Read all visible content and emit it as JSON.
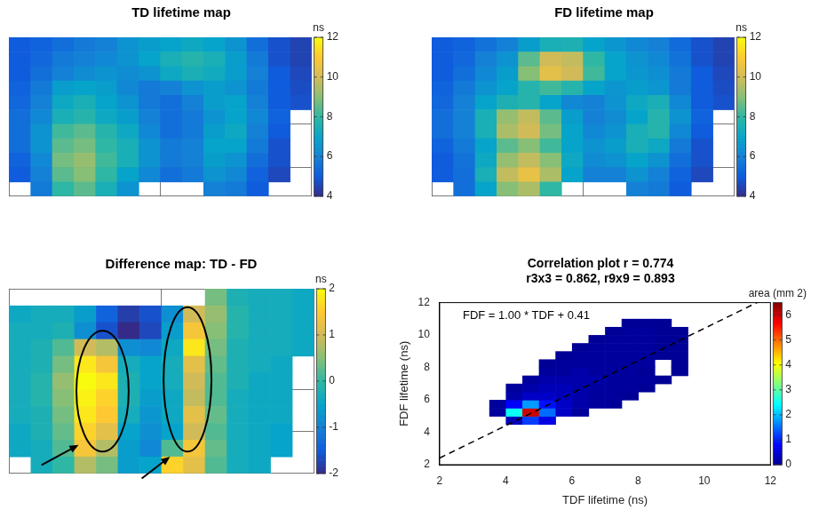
{
  "chart_data": [
    {
      "type": "heatmap",
      "title": "TD lifetime map",
      "xlim": [
        0,
        14
      ],
      "ylim": [
        0,
        11
      ],
      "xticks": [
        0,
        7,
        14
      ],
      "yticks": [
        0,
        3,
        6,
        9,
        11
      ],
      "grid": true,
      "tick_labels": false,
      "colorbar": {
        "label": "ns",
        "range": [
          4,
          12
        ],
        "ticks": [
          4,
          6,
          8,
          10,
          12
        ]
      },
      "cells": [
        [
          5.0,
          5.2,
          5.5,
          5.8,
          6.0,
          6.5,
          6.8,
          7.0,
          7.2,
          7.0,
          6.5,
          5.5,
          4.8,
          4.5
        ],
        [
          5.0,
          5.3,
          5.8,
          6.0,
          6.2,
          6.5,
          7.0,
          7.5,
          7.8,
          7.5,
          6.8,
          5.8,
          4.8,
          4.5
        ],
        [
          5.0,
          5.5,
          6.0,
          6.3,
          6.5,
          6.3,
          6.5,
          7.2,
          7.5,
          7.3,
          6.8,
          6.0,
          5.0,
          4.6
        ],
        [
          5.2,
          5.8,
          6.8,
          7.0,
          6.8,
          6.2,
          5.8,
          6.0,
          6.5,
          6.8,
          6.5,
          5.8,
          5.0,
          4.7
        ],
        [
          5.3,
          6.0,
          7.2,
          7.5,
          7.0,
          6.5,
          5.8,
          5.5,
          6.0,
          6.8,
          7.0,
          6.0,
          5.0,
          4.8
        ],
        [
          5.5,
          6.2,
          7.5,
          7.8,
          7.2,
          6.8,
          6.0,
          5.5,
          5.8,
          6.5,
          7.0,
          6.2,
          5.2,
          null
        ],
        [
          5.5,
          6.5,
          8.2,
          8.5,
          7.8,
          7.2,
          6.2,
          5.5,
          5.8,
          6.8,
          7.2,
          6.0,
          5.0,
          null
        ],
        [
          5.5,
          6.5,
          8.5,
          8.8,
          8.0,
          7.5,
          6.5,
          5.8,
          6.0,
          7.0,
          7.0,
          5.8,
          4.8,
          null
        ],
        [
          5.2,
          6.2,
          8.8,
          9.2,
          8.2,
          7.5,
          6.5,
          5.8,
          6.0,
          6.8,
          6.5,
          5.5,
          4.8,
          null
        ],
        [
          5.0,
          6.0,
          8.5,
          9.0,
          8.0,
          7.0,
          6.2,
          5.5,
          5.8,
          6.5,
          6.2,
          5.2,
          4.6,
          null
        ],
        [
          null,
          5.8,
          8.0,
          8.5,
          7.5,
          6.5,
          null,
          null,
          null,
          6.0,
          5.8,
          5.0,
          null,
          null
        ]
      ]
    },
    {
      "type": "heatmap",
      "title": "FD lifetime map",
      "xlim": [
        0,
        14
      ],
      "ylim": [
        0,
        11
      ],
      "xticks": [
        0,
        7,
        14
      ],
      "yticks": [
        0,
        3,
        6,
        9,
        11
      ],
      "grid": true,
      "tick_labels": false,
      "colorbar": {
        "label": "ns",
        "range": [
          4,
          12
        ],
        "ticks": [
          4,
          6,
          8,
          10,
          12
        ]
      },
      "cells": [
        [
          5.0,
          5.2,
          5.6,
          6.0,
          6.8,
          7.5,
          7.6,
          7.0,
          6.6,
          6.2,
          6.0,
          5.4,
          4.8,
          4.5
        ],
        [
          5.0,
          5.3,
          6.0,
          6.5,
          8.5,
          10.0,
          9.8,
          8.0,
          7.0,
          6.5,
          6.2,
          5.6,
          4.8,
          4.5
        ],
        [
          5.0,
          5.5,
          6.2,
          6.8,
          9.0,
          10.4,
          10.0,
          8.2,
          7.0,
          6.6,
          6.4,
          5.8,
          5.0,
          4.6
        ],
        [
          5.2,
          5.8,
          6.5,
          7.0,
          7.8,
          8.2,
          7.8,
          7.0,
          6.6,
          6.8,
          6.6,
          5.8,
          5.0,
          4.7
        ],
        [
          5.3,
          6.0,
          7.0,
          7.6,
          7.8,
          7.0,
          6.2,
          6.0,
          6.5,
          7.2,
          7.5,
          6.2,
          5.0,
          4.8
        ],
        [
          5.5,
          6.0,
          7.5,
          9.2,
          9.8,
          8.5,
          6.8,
          6.0,
          6.3,
          7.0,
          7.8,
          6.5,
          5.2,
          null
        ],
        [
          5.5,
          6.0,
          7.5,
          9.5,
          10.0,
          8.8,
          7.0,
          6.2,
          6.5,
          7.5,
          7.8,
          6.2,
          5.0,
          null
        ],
        [
          5.2,
          5.8,
          7.0,
          8.5,
          9.0,
          8.2,
          7.0,
          6.5,
          6.8,
          7.5,
          7.2,
          5.8,
          4.8,
          null
        ],
        [
          5.0,
          5.6,
          7.2,
          9.2,
          9.8,
          9.0,
          7.2,
          6.3,
          6.5,
          7.0,
          6.5,
          5.5,
          4.8,
          null
        ],
        [
          5.0,
          5.5,
          7.5,
          9.8,
          10.5,
          9.5,
          7.0,
          6.0,
          6.0,
          6.5,
          6.0,
          5.2,
          4.6,
          null
        ],
        [
          null,
          5.5,
          7.0,
          9.0,
          9.5,
          8.0,
          null,
          null,
          null,
          6.0,
          5.8,
          5.0,
          null,
          null
        ]
      ]
    },
    {
      "type": "heatmap",
      "title": "Difference map: TD - FD",
      "xlim": [
        0,
        14
      ],
      "ylim": [
        0,
        11
      ],
      "xticks": [
        0,
        7,
        14
      ],
      "yticks": [
        0,
        3.5,
        6,
        8.5,
        11
      ],
      "grid": true,
      "tick_labels": false,
      "colorbar": {
        "label": "ns",
        "range": [
          -2,
          2
        ],
        "ticks": [
          -2,
          -1,
          0,
          1,
          2
        ]
      },
      "cells": [
        [
          null,
          null,
          null,
          null,
          null,
          null,
          null,
          null,
          null,
          0.4,
          -0.2,
          -0.3,
          -0.3,
          -0.4
        ],
        [
          -0.4,
          -0.3,
          -0.3,
          -0.6,
          -1.4,
          -1.8,
          -1.6,
          -0.8,
          1.0,
          0.6,
          -0.1,
          -0.3,
          -0.3,
          -0.4
        ],
        [
          -0.3,
          -0.3,
          -0.2,
          -0.8,
          -1.6,
          -2.0,
          -1.7,
          -0.6,
          1.4,
          0.5,
          -0.1,
          -0.3,
          -0.3,
          -0.4
        ],
        [
          -0.3,
          -0.2,
          0.2,
          1.0,
          0.8,
          -0.8,
          -0.9,
          -0.4,
          1.8,
          0.4,
          -0.2,
          -0.3,
          -0.3,
          -0.4
        ],
        [
          -0.3,
          -0.2,
          0.4,
          1.8,
          1.4,
          -0.3,
          -0.5,
          -0.3,
          1.2,
          0.3,
          -0.2,
          -0.3,
          -0.4,
          null
        ],
        [
          -0.3,
          -0.1,
          0.6,
          2.0,
          1.8,
          -0.2,
          -0.5,
          -0.3,
          1.0,
          0.2,
          -0.2,
          -0.4,
          -0.4,
          null
        ],
        [
          -0.3,
          -0.1,
          0.5,
          1.9,
          1.6,
          -0.2,
          -0.6,
          -0.4,
          0.9,
          0.2,
          -0.3,
          -0.4,
          -0.4,
          null
        ],
        [
          -0.3,
          -0.2,
          0.4,
          1.8,
          1.5,
          -0.3,
          -0.7,
          -0.4,
          1.2,
          0.3,
          -0.3,
          -0.4,
          -0.4,
          null
        ],
        [
          -0.4,
          -0.2,
          0.3,
          1.6,
          1.2,
          -0.5,
          -0.8,
          -0.5,
          1.0,
          0.2,
          -0.3,
          -0.4,
          -0.5,
          null
        ],
        [
          -0.4,
          -0.3,
          0.2,
          1.4,
          0.8,
          -0.6,
          -0.9,
          0.2,
          1.4,
          0.3,
          -0.3,
          -0.4,
          -0.5,
          null
        ],
        [
          null,
          -0.3,
          0.0,
          0.8,
          0.4,
          -0.6,
          -0.5,
          1.6,
          1.2,
          0.2,
          -0.3,
          -0.4,
          null,
          null
        ]
      ]
    },
    {
      "type": "hist2d",
      "title": "Correlation plot r = 0.774",
      "subtitle": "r3x3 = 0.862, r9x9 = 0.893",
      "annotations": [
        "FDF = 1.00 * TDF + 0.41"
      ],
      "x_label": "TDF lifetime (ns)",
      "y_label": "FDF lifetime (ns)",
      "xlim": [
        2,
        12
      ],
      "ylim": [
        2,
        12
      ],
      "xticks": [
        2,
        4,
        6,
        8,
        10,
        12
      ],
      "yticks": [
        2,
        4,
        6,
        8,
        10,
        12
      ],
      "grid": false,
      "fit": {
        "slope": 1.0,
        "intercept": 0.41,
        "line_style": "dashed",
        "color": "#000000"
      },
      "colorbar": {
        "label": "area (mm 2)",
        "range": [
          0,
          6.5
        ],
        "ticks": [
          0,
          1,
          2,
          3,
          4,
          5,
          6
        ]
      },
      "x_edges": [
        3.5,
        4.0,
        4.5,
        5.0,
        5.5,
        6.0,
        6.5,
        7.0,
        7.5,
        8.0,
        8.5,
        9.0,
        9.5
      ],
      "y_edges": [
        4.5,
        5.0,
        5.5,
        6.0,
        6.5,
        7.0,
        7.5,
        8.0,
        8.5,
        9.0,
        9.5,
        10.0,
        10.5,
        11.0
      ],
      "area": [
        [
          null,
          0.3,
          1.2,
          0.6,
          null,
          null,
          null,
          null,
          null,
          null,
          null,
          null
        ],
        [
          0.1,
          2.5,
          6.0,
          1.5,
          0.4,
          0.1,
          null,
          null,
          null,
          null,
          null,
          null
        ],
        [
          0.1,
          0.8,
          1.8,
          0.9,
          0.4,
          0.2,
          0.1,
          0.05,
          null,
          null,
          null,
          null
        ],
        [
          null,
          0.2,
          0.4,
          0.4,
          0.3,
          0.2,
          0.1,
          0.1,
          0.05,
          null,
          null,
          null
        ],
        [
          null,
          0.1,
          0.2,
          0.3,
          0.3,
          0.2,
          0.1,
          0.1,
          0.1,
          0.05,
          null,
          null
        ],
        [
          null,
          null,
          0.1,
          0.2,
          0.2,
          0.2,
          0.2,
          0.1,
          0.1,
          0.1,
          0.05,
          null
        ],
        [
          null,
          null,
          null,
          0.1,
          0.1,
          0.2,
          0.1,
          0.1,
          0.1,
          0.05,
          null,
          0.05
        ],
        [
          null,
          null,
          null,
          0.05,
          0.1,
          0.1,
          0.1,
          0.1,
          0.1,
          0.1,
          null,
          0.05
        ],
        [
          null,
          null,
          null,
          null,
          0.05,
          0.1,
          0.1,
          0.1,
          0.1,
          0.1,
          0.05,
          0.05
        ],
        [
          null,
          null,
          null,
          null,
          null,
          0.05,
          0.1,
          0.1,
          0.1,
          0.1,
          0.05,
          0.05
        ],
        [
          null,
          null,
          null,
          null,
          null,
          null,
          0.05,
          0.1,
          0.1,
          0.1,
          0.05,
          0.05
        ],
        [
          null,
          null,
          null,
          null,
          null,
          null,
          null,
          0.05,
          0.1,
          0.1,
          0.05,
          0.05
        ],
        [
          null,
          null,
          null,
          null,
          null,
          null,
          null,
          null,
          0.05,
          0.05,
          0.05,
          null
        ]
      ]
    }
  ]
}
